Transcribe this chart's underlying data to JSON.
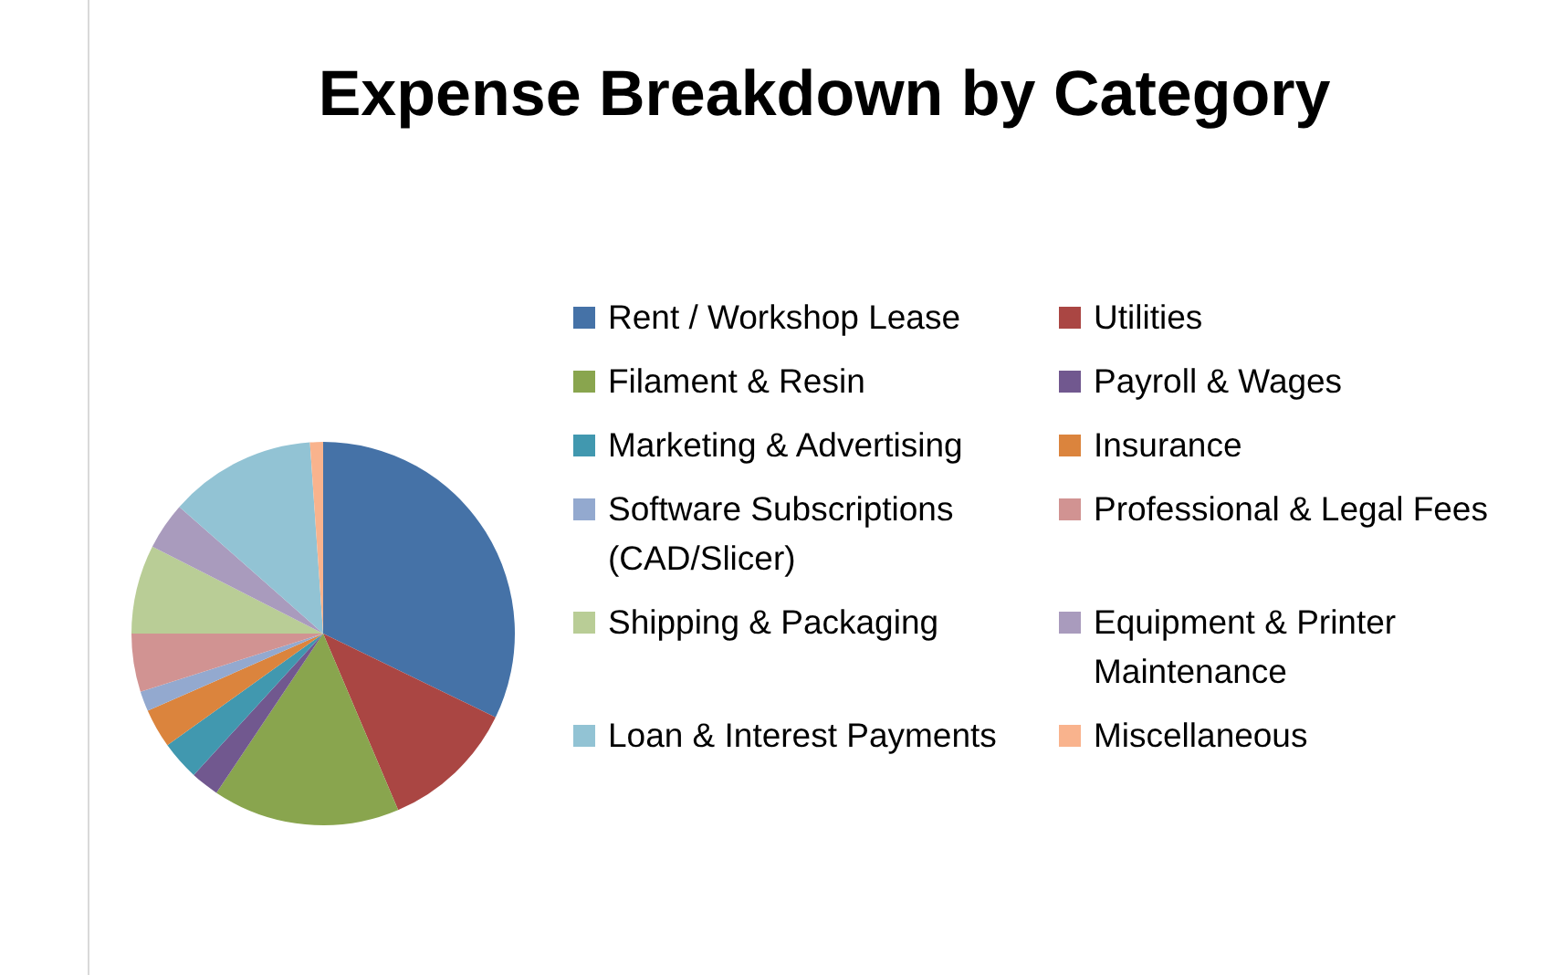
{
  "chart_data": {
    "type": "pie",
    "title": "Expense Breakdown by Category",
    "categories": [
      "Rent / Workshop Lease",
      "Utilities",
      "Filament & Resin",
      "Payroll & Wages",
      "Marketing & Advertising",
      "Insurance",
      "Software Subscriptions (CAD/Slicer)",
      "Professional & Legal Fees",
      "Shipping & Packaging",
      "Equipment & Printer Maintenance",
      "Loan & Interest Payments",
      "Miscellaneous"
    ],
    "values": [
      32.2,
      11.4,
      15.8,
      2.4,
      3.3,
      3.3,
      1.7,
      4.9,
      7.5,
      4.0,
      12.4,
      1.1
    ],
    "colors": [
      "#4572a7",
      "#aa4643",
      "#89a54e",
      "#71588f",
      "#4198af",
      "#db843d",
      "#93a9cf",
      "#d19392",
      "#b9cd96",
      "#a99bbd",
      "#92c3d4",
      "#f9b38d"
    ],
    "legend": "right"
  }
}
